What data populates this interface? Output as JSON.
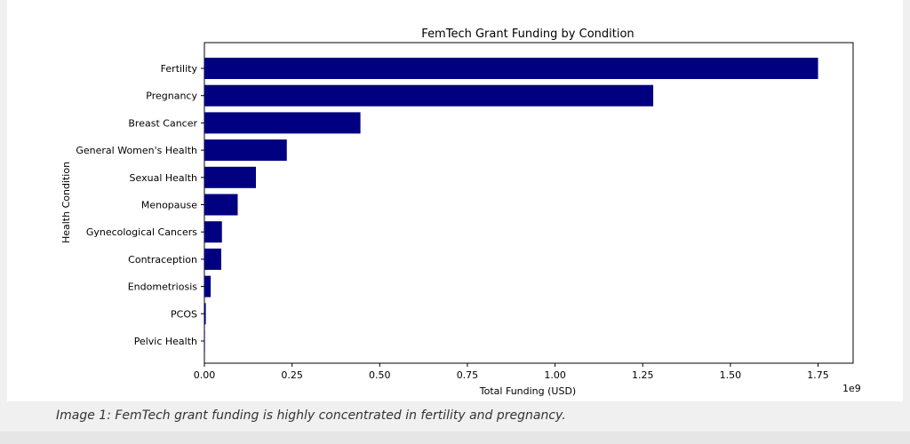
{
  "caption": "Image 1: FemTech grant funding is highly concentrated in fertility and pregnancy.",
  "chart_data": {
    "type": "bar",
    "orientation": "horizontal",
    "title": "FemTech Grant Funding by Condition",
    "xlabel": "Total Funding (USD)",
    "ylabel": "Health Condition",
    "x_scale_label": "1e9",
    "xlim": [
      0,
      1850000000
    ],
    "x_ticks": [
      0,
      250000000,
      500000000,
      750000000,
      1000000000,
      1250000000,
      1500000000,
      1750000000
    ],
    "x_tick_labels": [
      "0.00",
      "0.25",
      "0.50",
      "0.75",
      "1.00",
      "1.25",
      "1.50",
      "1.75"
    ],
    "categories": [
      "Fertility",
      "Pregnancy",
      "Breast Cancer",
      "General Women's Health",
      "Sexual Health",
      "Menopause",
      "Gynecological Cancers",
      "Contraception",
      "Endometriosis",
      "PCOS",
      "Pelvic Health"
    ],
    "values": [
      1750000000,
      1280000000,
      445000000,
      235000000,
      147000000,
      95000000,
      50000000,
      48000000,
      18000000,
      4000000,
      1000000
    ],
    "bar_color": "#000080",
    "grid": false,
    "legend": "none"
  }
}
